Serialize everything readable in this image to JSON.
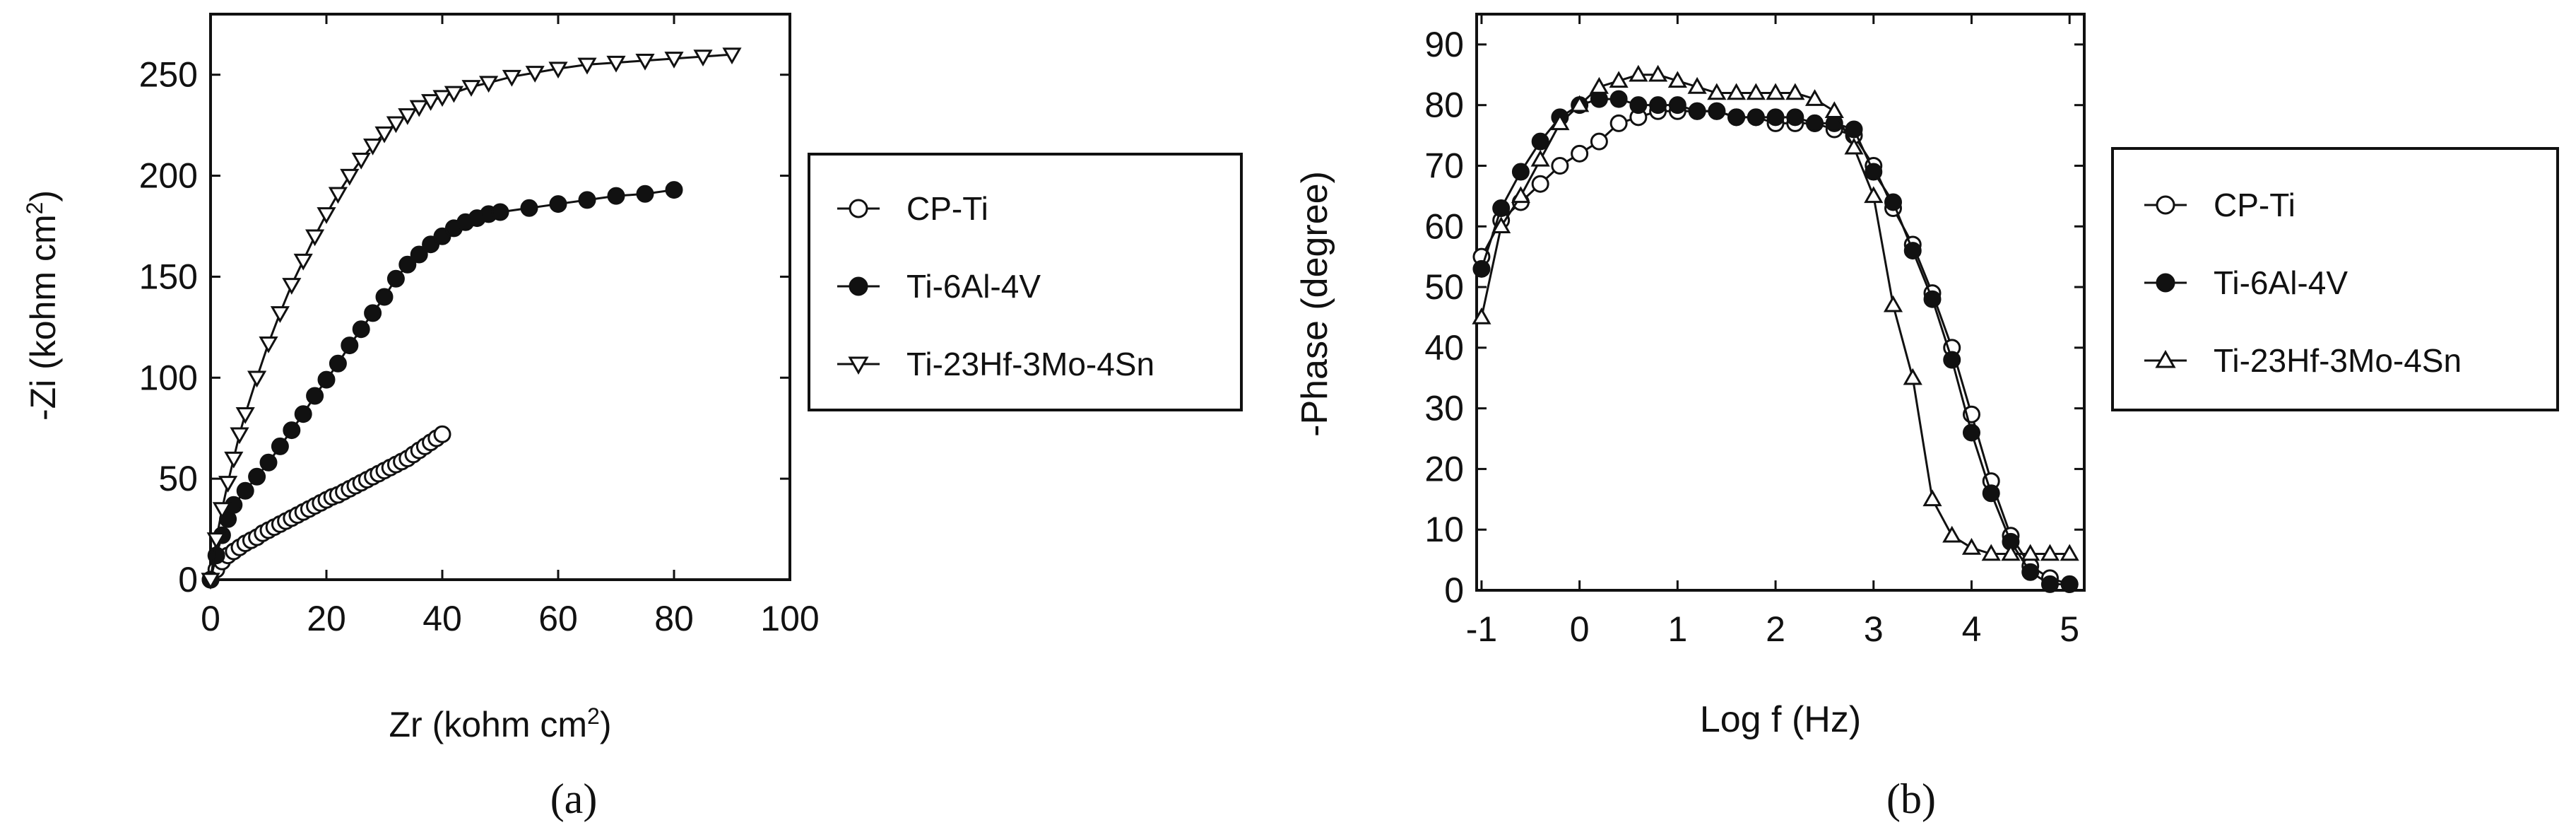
{
  "figure": {
    "panel_a_caption": "(a)",
    "panel_b_caption": "(b)"
  },
  "chart_data": [
    {
      "type": "scatter",
      "panel": "a",
      "xlabel": "Zr (kohm cm",
      "xlabel_sup": "2",
      "xlabel_end": ")",
      "ylabel": "-Zi (kohm cm",
      "ylabel_sup": "2",
      "ylabel_end": ")",
      "xlim": [
        0,
        100
      ],
      "ylim": [
        0,
        280
      ],
      "xticks": [
        0,
        20,
        40,
        60,
        80,
        100
      ],
      "yticks": [
        0,
        50,
        100,
        150,
        200,
        250
      ],
      "grid": false,
      "legend_position": "right",
      "series": [
        {
          "name": "CP-Ti",
          "marker": "circle-open",
          "x": [
            0,
            1,
            2,
            3,
            4,
            5,
            6,
            7,
            8,
            9,
            10,
            11,
            12,
            13,
            14,
            15,
            16,
            17,
            18,
            19,
            20,
            21,
            22,
            23,
            24,
            25,
            26,
            27,
            28,
            29,
            30,
            31,
            32,
            33,
            34,
            35,
            36,
            37,
            38,
            39,
            40
          ],
          "y": [
            0,
            5,
            9,
            12,
            14,
            16,
            18,
            19.5,
            21,
            23,
            24.5,
            26,
            27.5,
            29,
            30.5,
            32,
            33.5,
            35,
            36.5,
            38,
            39.5,
            41,
            42,
            43.5,
            45,
            46.5,
            48,
            49.5,
            51,
            52.5,
            54,
            55.5,
            57,
            58.5,
            60,
            62,
            64,
            66,
            68,
            70,
            72
          ]
        },
        {
          "name": "Ti-6Al-4V",
          "marker": "circle-filled",
          "x": [
            0,
            1,
            2,
            3,
            4,
            6,
            8,
            10,
            12,
            14,
            16,
            18,
            20,
            22,
            24,
            26,
            28,
            30,
            32,
            34,
            36,
            38,
            40,
            42,
            44,
            46,
            48,
            50,
            55,
            60,
            65,
            70,
            75,
            80
          ],
          "y": [
            0,
            12,
            22,
            30,
            37,
            44,
            51,
            58,
            66,
            74,
            82,
            91,
            99,
            107,
            116,
            124,
            132,
            140,
            149,
            156,
            161,
            166,
            170,
            174,
            177,
            179,
            181,
            182,
            184,
            186,
            188,
            190,
            191,
            193
          ]
        },
        {
          "name": "Ti-23Hf-3Mo-4Sn",
          "marker": "triangle-down-open",
          "x": [
            0,
            1,
            2,
            3,
            4,
            5,
            6,
            8,
            10,
            12,
            14,
            16,
            18,
            20,
            22,
            24,
            26,
            28,
            30,
            32,
            34,
            36,
            38,
            40,
            42,
            45,
            48,
            52,
            56,
            60,
            65,
            70,
            75,
            80,
            85,
            90
          ],
          "y": [
            0,
            20,
            35,
            48,
            60,
            72,
            82,
            100,
            117,
            132,
            146,
            158,
            170,
            181,
            191,
            200,
            208,
            215,
            221,
            226,
            230,
            234,
            237,
            239,
            241,
            244,
            246,
            249,
            251,
            253,
            255,
            256,
            257,
            258,
            259,
            260
          ]
        }
      ]
    },
    {
      "type": "line",
      "panel": "b",
      "xlabel": "Log f (Hz)",
      "ylabel": "-Phase (degree)",
      "xlim": [
        -1.05,
        5.15
      ],
      "ylim": [
        0,
        95
      ],
      "xticks": [
        -1,
        0,
        1,
        2,
        3,
        4,
        5
      ],
      "yticks": [
        0,
        10,
        20,
        30,
        40,
        50,
        60,
        70,
        80,
        90
      ],
      "grid": false,
      "legend_position": "right",
      "series": [
        {
          "name": "CP-Ti",
          "marker": "circle-open",
          "x": [
            -1,
            -0.8,
            -0.6,
            -0.4,
            -0.2,
            0,
            0.2,
            0.4,
            0.6,
            0.8,
            1,
            1.2,
            1.4,
            1.6,
            1.8,
            2,
            2.2,
            2.4,
            2.6,
            2.8,
            3,
            3.2,
            3.4,
            3.6,
            3.8,
            4,
            4.2,
            4.4,
            4.6,
            4.8,
            5
          ],
          "y": [
            55,
            61,
            64,
            67,
            70,
            72,
            74,
            77,
            78,
            79,
            79,
            79,
            79,
            78,
            78,
            77,
            77,
            77,
            76,
            75,
            70,
            63,
            57,
            49,
            40,
            29,
            18,
            9,
            4,
            2,
            1
          ]
        },
        {
          "name": "Ti-6Al-4V",
          "marker": "circle-filled",
          "x": [
            -1,
            -0.8,
            -0.6,
            -0.4,
            -0.2,
            0,
            0.2,
            0.4,
            0.6,
            0.8,
            1,
            1.2,
            1.4,
            1.6,
            1.8,
            2,
            2.2,
            2.4,
            2.6,
            2.8,
            3,
            3.2,
            3.4,
            3.6,
            3.8,
            4,
            4.2,
            4.4,
            4.6,
            4.8,
            5
          ],
          "y": [
            53,
            63,
            69,
            74,
            78,
            80,
            81,
            81,
            80,
            80,
            80,
            79,
            79,
            78,
            78,
            78,
            78,
            77,
            77,
            76,
            69,
            64,
            56,
            48,
            38,
            26,
            16,
            8,
            3,
            1,
            1
          ]
        },
        {
          "name": "Ti-23Hf-3Mo-4Sn",
          "marker": "triangle-up-open",
          "x": [
            -1,
            -0.8,
            -0.6,
            -0.4,
            -0.2,
            0,
            0.2,
            0.4,
            0.6,
            0.8,
            1,
            1.2,
            1.4,
            1.6,
            1.8,
            2,
            2.2,
            2.4,
            2.6,
            2.8,
            3,
            3.2,
            3.4,
            3.6,
            3.8,
            4,
            4.2,
            4.4,
            4.6,
            4.8,
            5
          ],
          "y": [
            45,
            60,
            65,
            71,
            77,
            80,
            83,
            84,
            85,
            85,
            84,
            83,
            82,
            82,
            82,
            82,
            82,
            81,
            79,
            73,
            65,
            47,
            35,
            15,
            9,
            7,
            6,
            6,
            6,
            6,
            6
          ]
        }
      ]
    }
  ]
}
